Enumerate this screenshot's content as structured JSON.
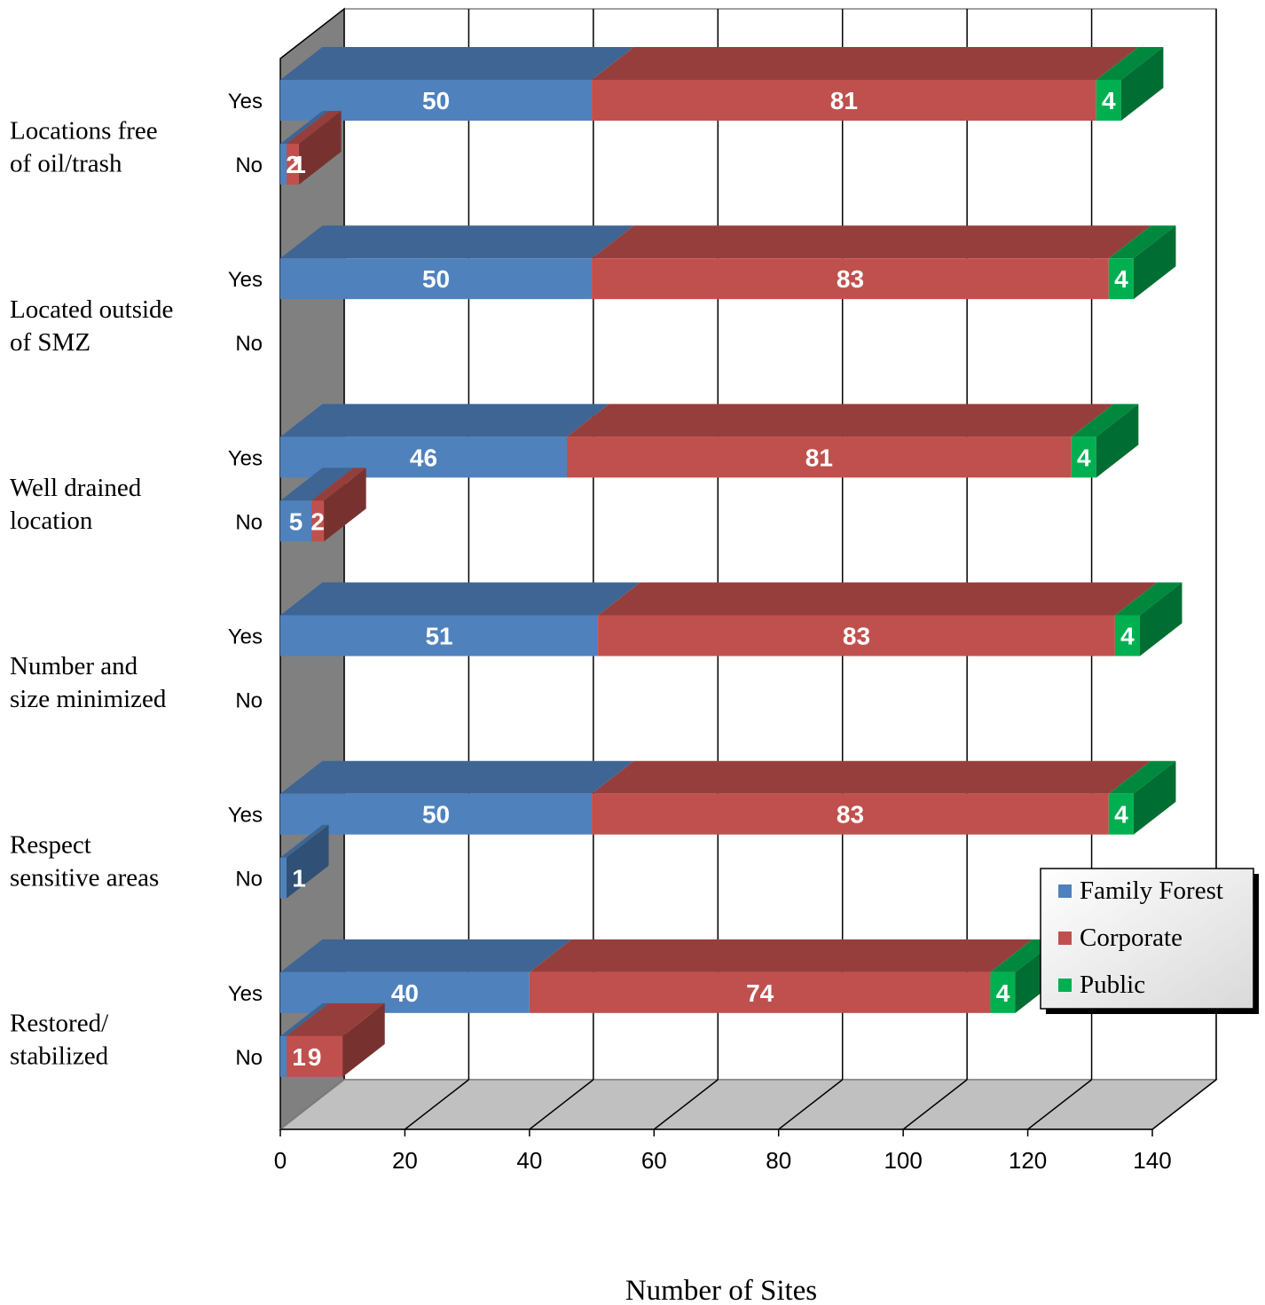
{
  "chart_data": {
    "type": "bar",
    "orientation": "horizontal",
    "stacked": true,
    "three_d": true,
    "xlabel": "Number of Sites",
    "xlim": [
      0,
      140
    ],
    "xticks": [
      "0",
      "20",
      "40",
      "60",
      "80",
      "100",
      "120",
      "140"
    ],
    "grid": true,
    "legend_position": "bottom-right",
    "categories": [
      {
        "label": [
          "Locations free",
          "of oil/trash"
        ]
      },
      {
        "label": [
          "Located outside",
          "of SMZ"
        ]
      },
      {
        "label": [
          "Well drained",
          "location"
        ]
      },
      {
        "label": [
          "Number and",
          "size minimized"
        ]
      },
      {
        "label": [
          "Respect",
          "sensitive areas"
        ]
      },
      {
        "label": [
          "Restored/",
          "stabilized"
        ]
      }
    ],
    "sub_categories": [
      "Yes",
      "No"
    ],
    "series": [
      {
        "name": "Family Forest",
        "color": "#4F81BD",
        "values": [
          [
            50,
            1
          ],
          [
            50,
            0
          ],
          [
            46,
            5
          ],
          [
            51,
            0
          ],
          [
            50,
            1
          ],
          [
            40,
            1
          ]
        ]
      },
      {
        "name": "Corporate",
        "color": "#C0504D",
        "values": [
          [
            81,
            2
          ],
          [
            83,
            0
          ],
          [
            81,
            2
          ],
          [
            83,
            0
          ],
          [
            83,
            0
          ],
          [
            74,
            9
          ]
        ]
      },
      {
        "name": "Public",
        "color": "#00B050",
        "values": [
          [
            4,
            0
          ],
          [
            4,
            0
          ],
          [
            4,
            0
          ],
          [
            4,
            0
          ],
          [
            4,
            0
          ],
          [
            4,
            0
          ]
        ]
      }
    ]
  }
}
